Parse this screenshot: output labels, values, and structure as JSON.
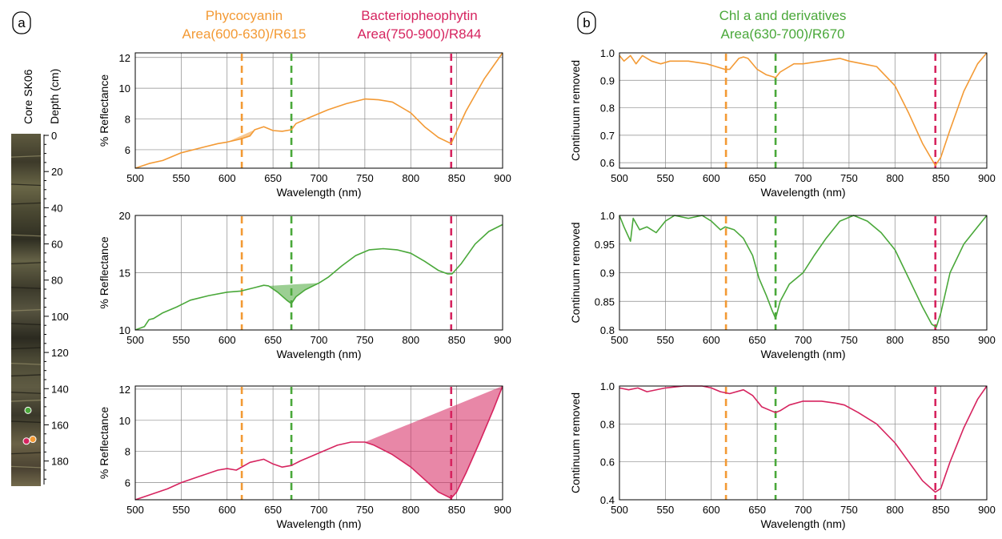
{
  "figure": {
    "colors": {
      "orange": "#f39a35",
      "green": "#4aa83a",
      "magenta": "#d6245f",
      "grid": "#8a8a8a"
    },
    "panel_a_label": "a",
    "panel_b_label": "b",
    "headers": [
      {
        "title": "Phycocyanin",
        "formula": "Area(600-630)/R615",
        "color": "#f39a35"
      },
      {
        "title": "Bacteriopheophytin",
        "formula": "Area(750-900)/R844",
        "color": "#d6245f"
      },
      {
        "title": "Chl a and derivatives",
        "formula": "Area(630-700)/R670",
        "color": "#4aa83a"
      }
    ],
    "core": {
      "name": "Core SK06",
      "depth_label": "Depth (cm)",
      "depth_ticks": [
        0,
        20,
        40,
        60,
        80,
        100,
        120,
        140,
        160,
        180
      ],
      "depth_range": [
        0,
        193
      ],
      "markers": [
        {
          "color": "green",
          "depth": 152
        },
        {
          "color": "magenta",
          "depth": 169
        },
        {
          "color": "orange",
          "depth": 168
        }
      ]
    }
  },
  "chart_data": [
    {
      "id": "a1",
      "type": "line",
      "color": "orange",
      "xlabel": "Wavelength (nm)",
      "ylabel": "% Reflectance",
      "xlim": [
        500,
        900
      ],
      "ylim": [
        4.8,
        12.3
      ],
      "xticks": [
        500,
        550,
        600,
        650,
        700,
        750,
        800,
        850,
        900
      ],
      "yticks": [
        6,
        8,
        10,
        12
      ],
      "vlines": [
        {
          "x": 616,
          "color": "orange"
        },
        {
          "x": 670,
          "color": "green"
        },
        {
          "x": 844,
          "color": "magenta"
        }
      ],
      "fill": {
        "from": 600,
        "to": 630
      },
      "series": [
        {
          "x": [
            500,
            505,
            515,
            530,
            550,
            570,
            590,
            600,
            615,
            625,
            630,
            640,
            650,
            660,
            670,
            675,
            690,
            710,
            730,
            750,
            765,
            780,
            800,
            815,
            830,
            844,
            850,
            860,
            880,
            900
          ],
          "y": [
            4.8,
            4.9,
            5.1,
            5.3,
            5.8,
            6.1,
            6.4,
            6.5,
            6.7,
            6.9,
            7.3,
            7.5,
            7.25,
            7.2,
            7.3,
            7.7,
            8.1,
            8.6,
            9.0,
            9.3,
            9.25,
            9.1,
            8.4,
            7.5,
            6.8,
            6.4,
            7.2,
            8.5,
            10.6,
            12.3
          ]
        }
      ]
    },
    {
      "id": "a2",
      "type": "line",
      "color": "green",
      "xlabel": "Wavelength (nm)",
      "ylabel": "% Reflectance",
      "xlim": [
        500,
        900
      ],
      "ylim": [
        10,
        20
      ],
      "xticks": [
        500,
        550,
        600,
        650,
        700,
        750,
        800,
        850,
        900
      ],
      "yticks": [
        10,
        15,
        20
      ],
      "vlines": [
        {
          "x": 616,
          "color": "orange"
        },
        {
          "x": 670,
          "color": "green"
        },
        {
          "x": 844,
          "color": "magenta"
        }
      ],
      "fill": {
        "from": 645,
        "to": 700
      },
      "series": [
        {
          "x": [
            500,
            510,
            515,
            520,
            530,
            545,
            560,
            580,
            600,
            615,
            630,
            640,
            645,
            655,
            665,
            670,
            675,
            685,
            695,
            700,
            710,
            725,
            740,
            755,
            770,
            785,
            800,
            815,
            830,
            840,
            845,
            855,
            870,
            885,
            900
          ],
          "y": [
            10,
            10.3,
            10.9,
            11.0,
            11.5,
            12.0,
            12.6,
            13.0,
            13.3,
            13.4,
            13.7,
            13.9,
            13.85,
            13.3,
            12.6,
            12.3,
            12.9,
            13.5,
            13.9,
            14.1,
            14.6,
            15.6,
            16.5,
            17.0,
            17.1,
            17.0,
            16.7,
            16.0,
            15.2,
            14.9,
            14.9,
            15.8,
            17.5,
            18.6,
            19.2
          ]
        }
      ]
    },
    {
      "id": "a3",
      "type": "line",
      "color": "magenta",
      "xlabel": "Wavelength (nm)",
      "ylabel": "% Reflectance",
      "xlim": [
        500,
        900
      ],
      "ylim": [
        4.9,
        12.2
      ],
      "xticks": [
        500,
        550,
        600,
        650,
        700,
        750,
        800,
        850,
        900
      ],
      "yticks": [
        6,
        8,
        10,
        12
      ],
      "vlines": [
        {
          "x": 616,
          "color": "orange"
        },
        {
          "x": 670,
          "color": "green"
        },
        {
          "x": 844,
          "color": "magenta"
        }
      ],
      "fill": {
        "from": 750,
        "to": 900
      },
      "series": [
        {
          "x": [
            500,
            510,
            520,
            535,
            550,
            570,
            590,
            600,
            610,
            625,
            640,
            650,
            660,
            670,
            680,
            700,
            720,
            735,
            750,
            760,
            780,
            800,
            815,
            830,
            844,
            850,
            860,
            875,
            890,
            900
          ],
          "y": [
            4.9,
            5.1,
            5.3,
            5.6,
            6.0,
            6.4,
            6.8,
            6.9,
            6.8,
            7.3,
            7.5,
            7.2,
            7.0,
            7.1,
            7.4,
            7.9,
            8.4,
            8.6,
            8.6,
            8.4,
            7.8,
            7.0,
            6.2,
            5.4,
            5.0,
            5.4,
            6.6,
            8.6,
            10.7,
            12.2
          ]
        }
      ]
    },
    {
      "id": "b1",
      "type": "line",
      "color": "orange",
      "xlabel": "Wavelength (nm)",
      "ylabel": "Continuum removed",
      "xlim": [
        500,
        900
      ],
      "ylim": [
        0.58,
        1.0
      ],
      "xticks": [
        500,
        550,
        600,
        650,
        700,
        750,
        800,
        850,
        900
      ],
      "yticks": [
        0.6,
        0.7,
        0.8,
        0.9,
        1.0
      ],
      "ytick_labels": [
        "0.6",
        "0.7",
        "0.8",
        "0.9",
        "1.0"
      ],
      "vlines": [
        {
          "x": 616,
          "color": "orange"
        },
        {
          "x": 670,
          "color": "green"
        },
        {
          "x": 844,
          "color": "magenta"
        }
      ],
      "series": [
        {
          "x": [
            500,
            505,
            512,
            518,
            525,
            535,
            545,
            555,
            575,
            595,
            605,
            615,
            620,
            630,
            635,
            640,
            650,
            660,
            670,
            675,
            690,
            700,
            720,
            740,
            750,
            765,
            780,
            800,
            815,
            830,
            844,
            850,
            860,
            875,
            890,
            900
          ],
          "y": [
            0.99,
            0.97,
            0.99,
            0.96,
            0.99,
            0.97,
            0.96,
            0.97,
            0.97,
            0.96,
            0.95,
            0.94,
            0.94,
            0.98,
            0.985,
            0.98,
            0.94,
            0.92,
            0.91,
            0.93,
            0.96,
            0.96,
            0.97,
            0.98,
            0.97,
            0.96,
            0.95,
            0.88,
            0.78,
            0.67,
            0.59,
            0.62,
            0.72,
            0.86,
            0.96,
            1.0
          ]
        }
      ]
    },
    {
      "id": "b2",
      "type": "line",
      "color": "green",
      "xlabel": "Wavelength (nm)",
      "ylabel": "Continuum removed",
      "xlim": [
        500,
        900
      ],
      "ylim": [
        0.8,
        1.0
      ],
      "xticks": [
        500,
        550,
        600,
        650,
        700,
        750,
        800,
        850,
        900
      ],
      "yticks": [
        0.8,
        0.85,
        0.9,
        0.95,
        1.0
      ],
      "ytick_labels": [
        "0.8",
        "0.85",
        "0.9",
        "0.95",
        "1.0"
      ],
      "vlines": [
        {
          "x": 616,
          "color": "orange"
        },
        {
          "x": 670,
          "color": "green"
        },
        {
          "x": 844,
          "color": "magenta"
        }
      ],
      "series": [
        {
          "x": [
            500,
            505,
            512,
            515,
            522,
            530,
            540,
            550,
            560,
            575,
            590,
            600,
            610,
            615,
            625,
            635,
            645,
            652,
            660,
            666,
            670,
            675,
            685,
            700,
            712,
            725,
            740,
            755,
            770,
            785,
            800,
            815,
            830,
            840,
            845,
            850,
            860,
            875,
            890,
            900
          ],
          "y": [
            1.0,
            0.98,
            0.955,
            0.995,
            0.975,
            0.98,
            0.97,
            0.99,
            1.0,
            0.995,
            1.0,
            0.99,
            0.975,
            0.98,
            0.975,
            0.96,
            0.93,
            0.89,
            0.86,
            0.835,
            0.82,
            0.85,
            0.88,
            0.9,
            0.93,
            0.96,
            0.99,
            1.0,
            0.99,
            0.97,
            0.94,
            0.89,
            0.84,
            0.81,
            0.805,
            0.83,
            0.9,
            0.95,
            0.98,
            1.0
          ]
        }
      ]
    },
    {
      "id": "b3",
      "type": "line",
      "color": "magenta",
      "xlabel": "Wavelength (nm)",
      "ylabel": "Continuum removed",
      "xlim": [
        500,
        900
      ],
      "ylim": [
        0.4,
        1.0
      ],
      "xticks": [
        500,
        550,
        600,
        650,
        700,
        750,
        800,
        850,
        900
      ],
      "yticks": [
        0.4,
        0.6,
        0.8,
        1.0
      ],
      "ytick_labels": [
        "0.4",
        "0.6",
        "0.8",
        "1.0"
      ],
      "vlines": [
        {
          "x": 616,
          "color": "orange"
        },
        {
          "x": 670,
          "color": "green"
        },
        {
          "x": 844,
          "color": "magenta"
        }
      ],
      "series": [
        {
          "x": [
            500,
            510,
            520,
            530,
            550,
            570,
            590,
            600,
            610,
            620,
            635,
            645,
            655,
            665,
            670,
            675,
            685,
            700,
            720,
            735,
            745,
            760,
            780,
            800,
            815,
            830,
            844,
            850,
            860,
            875,
            890,
            900
          ],
          "y": [
            0.99,
            0.98,
            0.99,
            0.97,
            0.99,
            1.0,
            1.0,
            0.99,
            0.97,
            0.96,
            0.98,
            0.95,
            0.89,
            0.87,
            0.86,
            0.87,
            0.9,
            0.92,
            0.92,
            0.91,
            0.9,
            0.86,
            0.8,
            0.7,
            0.6,
            0.5,
            0.44,
            0.46,
            0.6,
            0.78,
            0.93,
            1.0
          ]
        }
      ]
    }
  ]
}
